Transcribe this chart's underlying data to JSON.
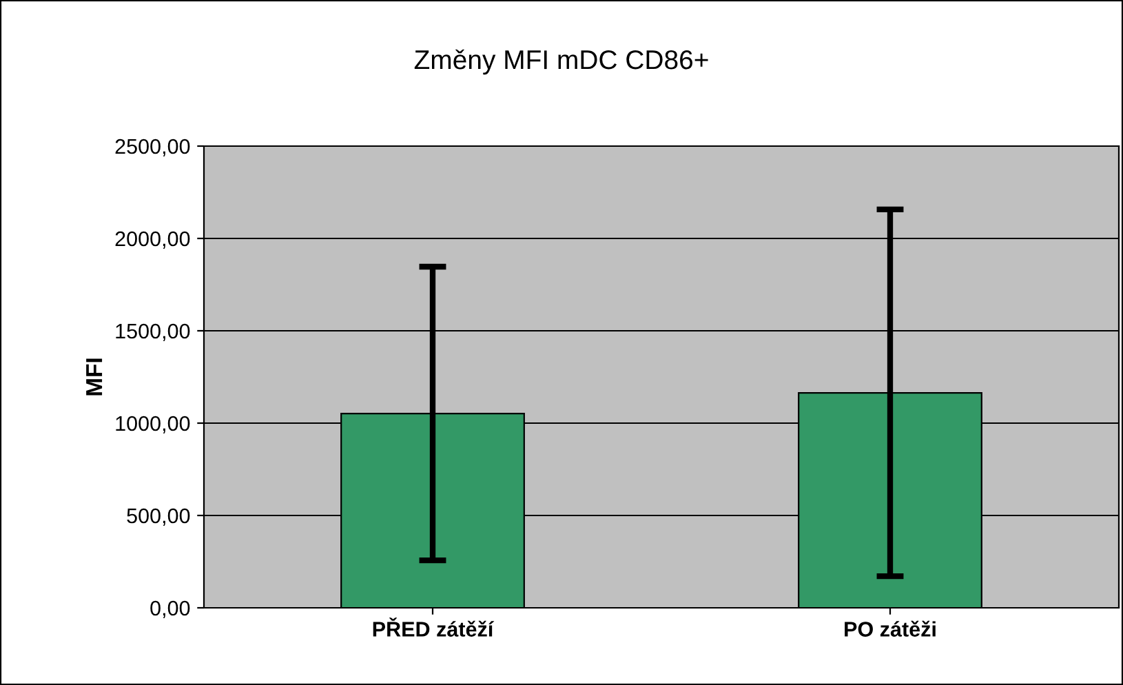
{
  "chart_data": {
    "type": "bar",
    "title": "Změny MFI mDC CD86+",
    "ylabel": "MFI",
    "categories": [
      "PŘED zátěží",
      "PO zátěži"
    ],
    "values": [
      1052,
      1164
    ],
    "errors": [
      795,
      993
    ],
    "color": "#339966",
    "ylim": [
      0,
      2500
    ],
    "yticks": [
      {
        "value": 0,
        "label": "0,00"
      },
      {
        "value": 500,
        "label": "500,00"
      },
      {
        "value": 1000,
        "label": "1000,00"
      },
      {
        "value": 1500,
        "label": "1500,00"
      },
      {
        "value": 2000,
        "label": "2000,00"
      },
      {
        "value": 2500,
        "label": "2500,00"
      }
    ],
    "grid": "y"
  }
}
